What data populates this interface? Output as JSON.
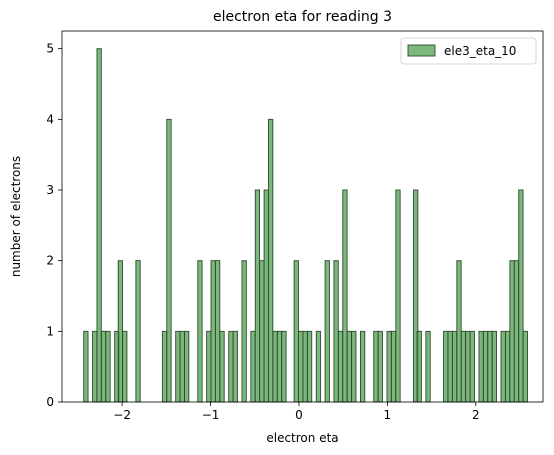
{
  "chart_data": {
    "type": "bar",
    "title": "electron eta for reading 3",
    "xlabel": "electron eta",
    "ylabel": "number of electrons",
    "xlim": [
      -2.68,
      2.76
    ],
    "ylim": [
      0,
      5.25
    ],
    "x_ticks": [
      -2,
      -1,
      0,
      1,
      2
    ],
    "x_tick_labels": [
      "−2",
      "−1",
      "0",
      "1",
      "2"
    ],
    "y_ticks": [
      0,
      1,
      2,
      3,
      4,
      5
    ],
    "y_tick_labels": [
      "0",
      "1",
      "2",
      "3",
      "4",
      "5"
    ],
    "bin_width": 0.049,
    "grid": false,
    "legend_position": "top-right",
    "series": [
      {
        "name": "ele3_eta_10",
        "color": "#4a9d4a",
        "edge_color": "#2d4a2d",
        "bins": [
          [
            -2.41,
            1
          ],
          [
            -2.31,
            1
          ],
          [
            -2.26,
            5
          ],
          [
            -2.21,
            1
          ],
          [
            -2.16,
            1
          ],
          [
            -2.06,
            1
          ],
          [
            -2.02,
            2
          ],
          [
            -1.97,
            1
          ],
          [
            -1.82,
            2
          ],
          [
            -1.52,
            1
          ],
          [
            -1.47,
            4
          ],
          [
            -1.37,
            1
          ],
          [
            -1.32,
            1
          ],
          [
            -1.27,
            1
          ],
          [
            -1.12,
            2
          ],
          [
            -1.02,
            1
          ],
          [
            -0.97,
            2
          ],
          [
            -0.92,
            2
          ],
          [
            -0.87,
            1
          ],
          [
            -0.77,
            1
          ],
          [
            -0.72,
            1
          ],
          [
            -0.62,
            2
          ],
          [
            -0.52,
            1
          ],
          [
            -0.47,
            3
          ],
          [
            -0.42,
            2
          ],
          [
            -0.37,
            3
          ],
          [
            -0.32,
            4
          ],
          [
            -0.27,
            1
          ],
          [
            -0.22,
            1
          ],
          [
            -0.17,
            1
          ],
          [
            -0.03,
            2
          ],
          [
            0.02,
            1
          ],
          [
            0.07,
            1
          ],
          [
            0.12,
            1
          ],
          [
            0.22,
            1
          ],
          [
            0.32,
            2
          ],
          [
            0.42,
            2
          ],
          [
            0.47,
            1
          ],
          [
            0.52,
            3
          ],
          [
            0.57,
            1
          ],
          [
            0.62,
            1
          ],
          [
            0.72,
            1
          ],
          [
            0.87,
            1
          ],
          [
            0.92,
            1
          ],
          [
            1.02,
            1
          ],
          [
            1.07,
            1
          ],
          [
            1.12,
            3
          ],
          [
            1.32,
            3
          ],
          [
            1.36,
            1
          ],
          [
            1.46,
            1
          ],
          [
            1.66,
            1
          ],
          [
            1.71,
            1
          ],
          [
            1.76,
            1
          ],
          [
            1.81,
            2
          ],
          [
            1.86,
            1
          ],
          [
            1.91,
            1
          ],
          [
            1.96,
            1
          ],
          [
            2.06,
            1
          ],
          [
            2.11,
            1
          ],
          [
            2.16,
            1
          ],
          [
            2.21,
            1
          ],
          [
            2.31,
            1
          ],
          [
            2.36,
            1
          ],
          [
            2.41,
            2
          ],
          [
            2.46,
            2
          ],
          [
            2.51,
            3
          ],
          [
            2.56,
            1
          ]
        ]
      }
    ]
  }
}
